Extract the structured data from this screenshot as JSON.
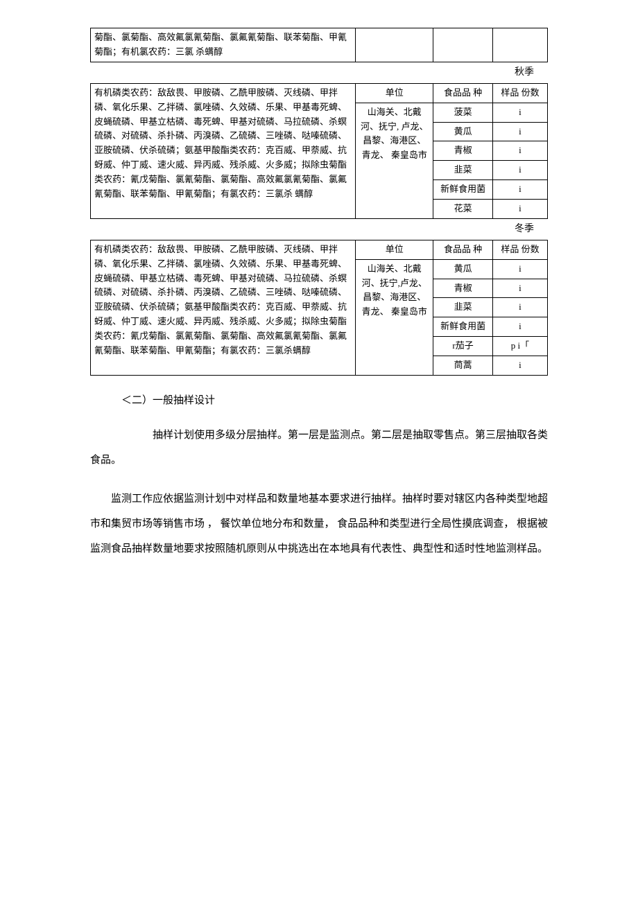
{
  "table1": {
    "desc": "菊酯、氯菊酯、高效氟氯氰菊酯、氯氟氰菊酯、联苯菊酯、甲氰菊酯；有机氯农药：三氯 杀螨醇",
    "unit_col": "",
    "food_col": "",
    "count_col": ""
  },
  "season_autumn": "秋季",
  "table2": {
    "desc": "有机磷类农药：敌敌畏、甲胺磷、乙酰甲胺磷、灭线磷、甲拌磷、氧化乐果、乙拌磷、氯唑磷、久效磷、乐果、甲基毒死蜱、皮蝇硫磷、甲基立枯磷、毒死蜱、甲基对硫磷、马拉硫磷、杀螟硫磷、对硫磷、杀扑磷、丙溴磷、乙硫磷、三唑磷、哒嗪硫磷、亚胺硫磷、伏杀硫磷；氨基甲酸酯类农药：克百威、甲萘威、抗蚜威、仲丁威、速火威、异丙威、残杀威、火多威；拟除虫菊酯类农药：氰戊菊酯、氯氰菊酯、氯菊酯、高效氟氯氰菊酯、氯氟氰菊酯、联苯菊酯、甲氰菊酯；有氯农药：三氯杀 螨醇",
    "header_unit": "单位",
    "header_food": "食品品 种",
    "header_count": "样品 份数",
    "unit": "山海关、北戴河、抚宁, 卢龙、昌黎、海港区、青龙、 秦皇岛市",
    "rows": [
      {
        "food": "菠菜",
        "count": "i"
      },
      {
        "food": "黄瓜",
        "count": "i"
      },
      {
        "food": "青椒",
        "count": "i"
      },
      {
        "food": "韭菜",
        "count": "i"
      },
      {
        "food": "新鲜食用菌",
        "count": "i"
      },
      {
        "food": "花菜",
        "count": "i"
      }
    ]
  },
  "season_winter": "冬季",
  "table3": {
    "desc": "有机磷类农药：敌敌畏、甲胺磷、乙酰甲胺磷、灭线磷、甲拌磷、氧化乐果、乙拌磷、氯唑磷、久效磷、乐果、甲基毒死蜱、皮蝇硫磷、甲基立枯磷、毒死蜱、甲基对硫磷、马拉硫磷、杀螟硫磷、对硫磷、杀扑磷、丙溴磷、乙硫磷、三唑磷、哒嗪硫磷、亚胺硫磷、伏杀硫磷；氨基甲酸酯类农药：克百威、甲萘威、抗蚜威、仲丁威、速火威、异丙威、残杀威、火多威；拟除虫菊酯类农药：氰戊菊酯、氯氰菊酯、氯菊酯、高效氟氯氰菊酯、氯氟氰菊酯、联苯菊酯、甲氰菊酯；有氯农药：三氯杀螨醇",
    "header_unit": "单位",
    "header_food": "食品品 种",
    "header_count": "样品 份数",
    "unit": "山海关、北戴河、抚宁,卢龙、昌黎、海港区、青龙、 秦皇岛市",
    "rows": [
      {
        "food": "黄瓜",
        "count": "i"
      },
      {
        "food": "青椒",
        "count": "i"
      },
      {
        "food": "韭菜",
        "count": "i"
      },
      {
        "food": "新鲜食用菌",
        "count": "i"
      },
      {
        "food": "r茄子",
        "count": "p i「"
      },
      {
        "food": "茼蒿",
        "count": "i"
      }
    ]
  },
  "section_header": "＜二）一般抽样设计",
  "para1": "抽样计划使用多级分层抽样。第一层是监测点。第二层是抽取零售点。第三层抽取各类食品。",
  "para2": "监测工作应依据监测计划中对样品和数量地基本要求进行抽样。抽样时要对辖区内各种类型地超市和集贸市场等销售市场 ， 餐饮单位地分布和数量， 食品品种和类型进行全局性摸底调查， 根据被监测食品抽样数量地要求按照随机原则从中挑选出在本地具有代表性、典型性和适时性地监测样品。"
}
